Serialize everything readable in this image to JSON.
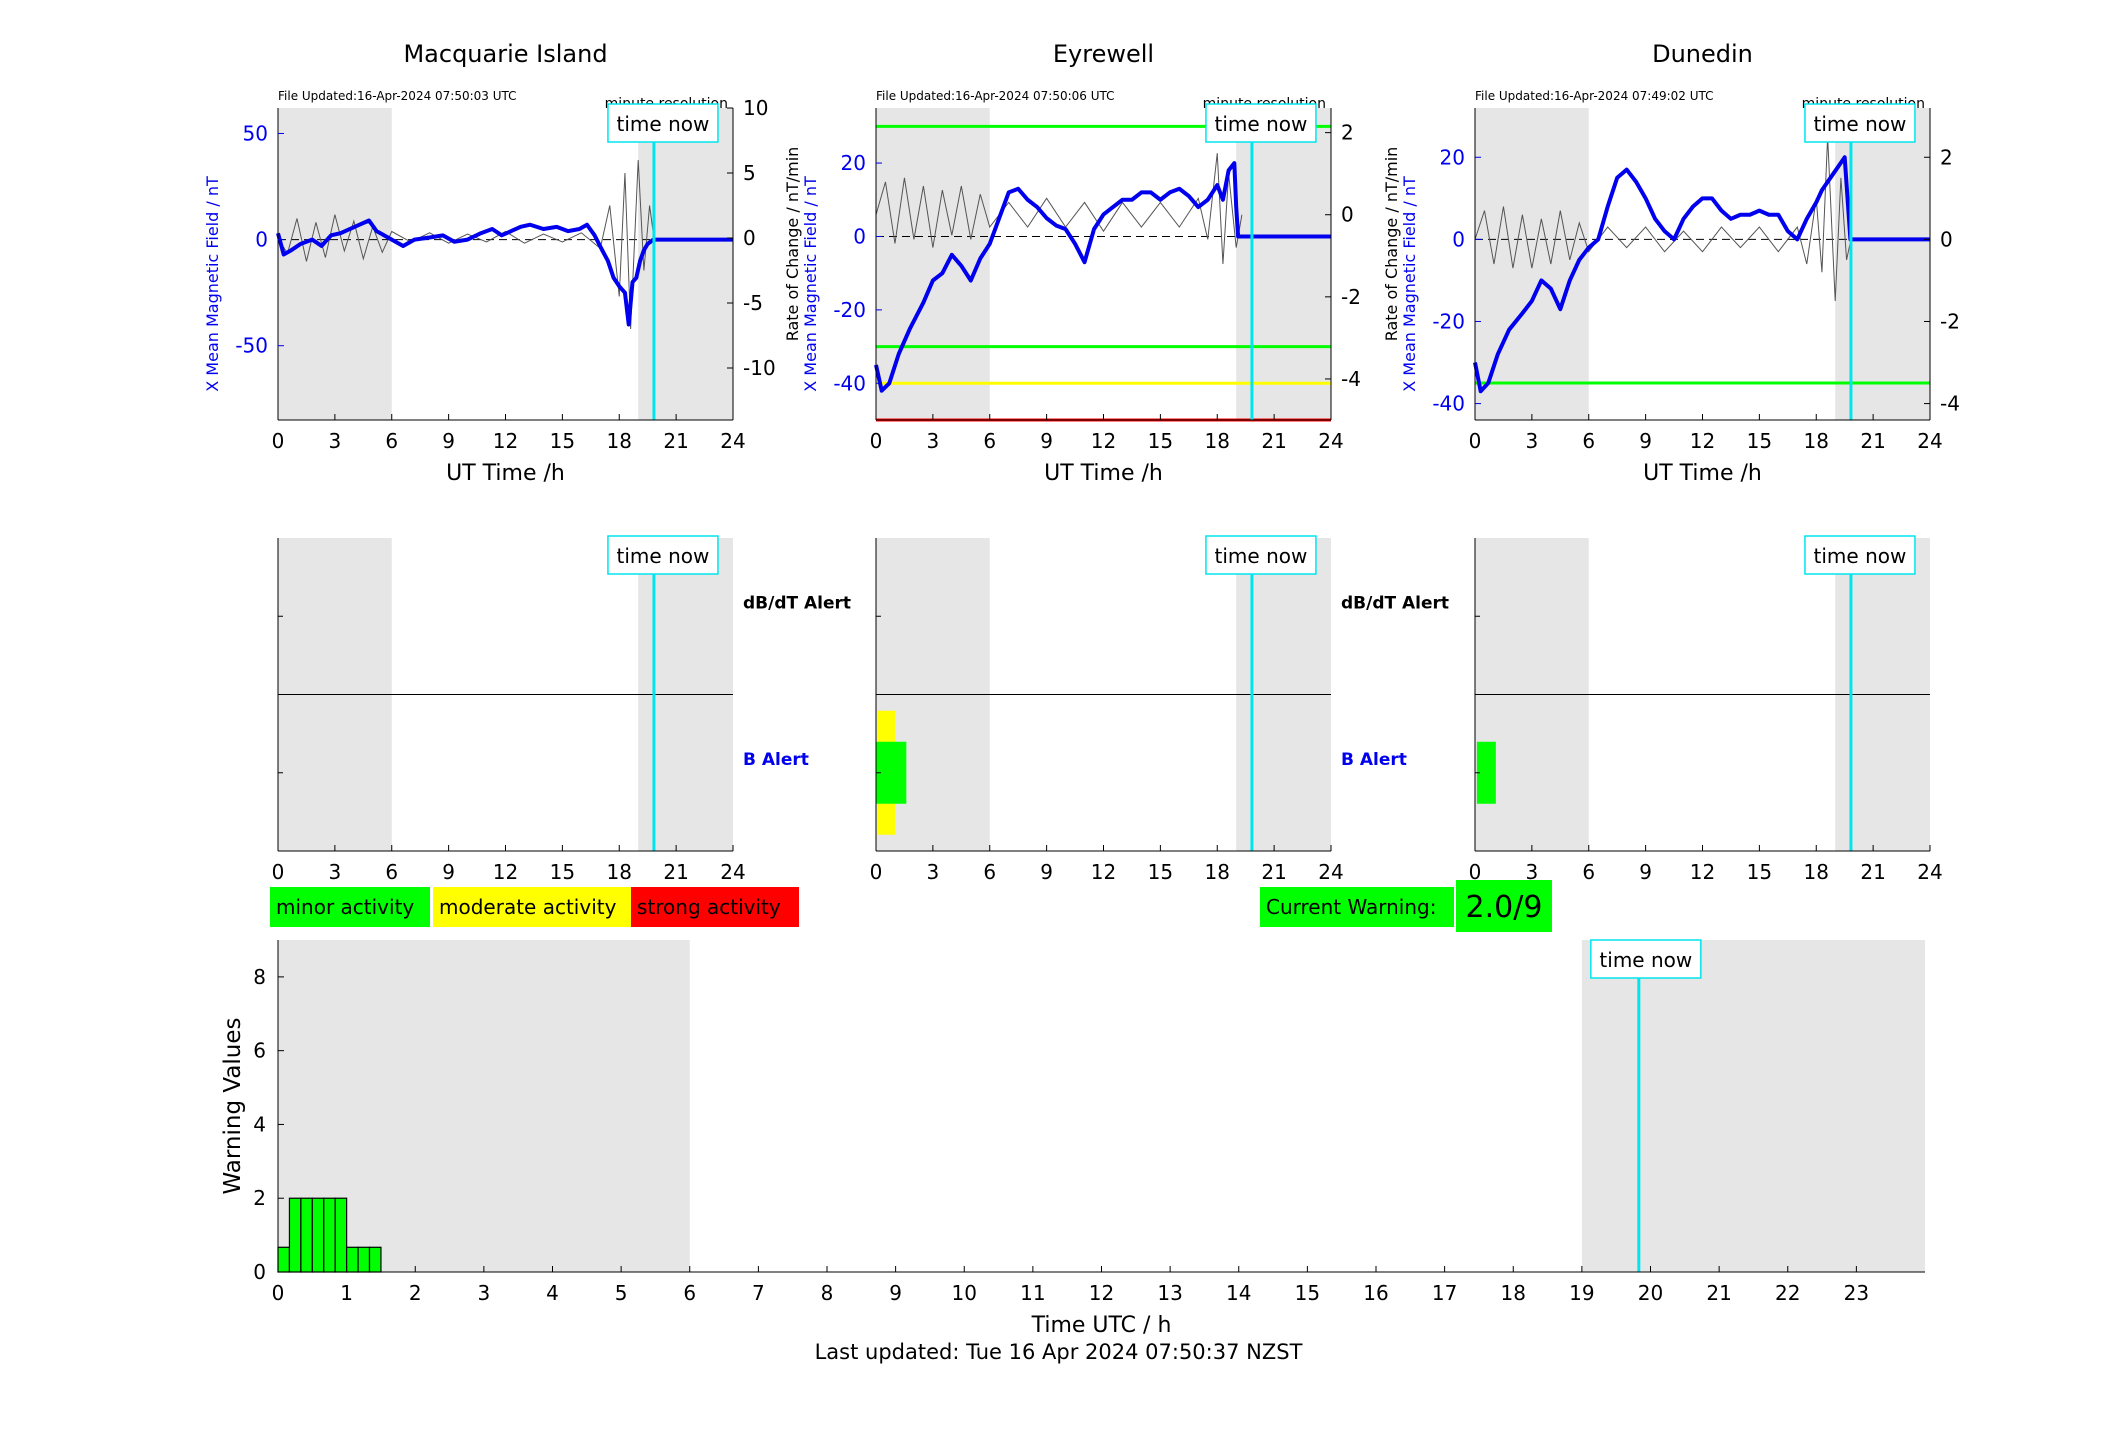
{
  "page": {
    "last_updated": "Last updated: Tue 16 Apr 2024 07:50:37 NZST"
  },
  "colors": {
    "field": "#0000ee",
    "rate": "#555555",
    "grey_band": "#e6e6e6",
    "time_now": "#00e5ee",
    "green": "#00ff00",
    "yellow": "#ffff00",
    "red": "#ff0000"
  },
  "legend": {
    "minor": "minor activity",
    "moderate": "moderate activity",
    "strong": "strong activity"
  },
  "current_warning": {
    "label": "Current Warning:",
    "value": "2.0/9"
  },
  "chart_data": [
    {
      "type": "line",
      "title": "Macquarie Island",
      "file_updated": "File Updated:16-Apr-2024 07:50:03 UTC",
      "resolution": "minute resolution",
      "time_now_label": "time now",
      "xlabel": "UT Time /h",
      "ylabel_left": "X Mean Magnetic Field / nT",
      "ylabel_right": "",
      "xlim": [
        0,
        24
      ],
      "xticks": [
        0,
        3,
        6,
        9,
        12,
        15,
        18,
        21,
        24
      ],
      "ylim_left": [
        -85,
        62
      ],
      "yticks_left": [
        -50,
        0,
        50
      ],
      "ylim_right": [
        -14,
        10
      ],
      "yticks_right": [
        -10,
        -5,
        0,
        5,
        10
      ],
      "grey_bands": [
        [
          0,
          6
        ],
        [
          19,
          24
        ]
      ],
      "time_now": 19.83,
      "threshold_lines": [],
      "series": [
        {
          "name": "X Mean Magnetic Field",
          "axis": "left",
          "x": [
            0,
            0.3,
            0.7,
            1.2,
            1.8,
            2.3,
            2.8,
            3.3,
            3.8,
            4.3,
            4.8,
            5.2,
            5.6,
            6.0,
            6.6,
            7.2,
            8.0,
            8.7,
            9.3,
            10,
            10.7,
            11.3,
            11.8,
            12.3,
            12.8,
            13.3,
            14.0,
            14.7,
            15.3,
            15.9,
            16.3,
            16.7,
            17.1,
            17.4,
            17.7,
            18.0,
            18.3,
            18.5,
            18.7,
            18.9,
            19.1,
            19.3,
            19.5,
            19.8,
            20.5,
            24
          ],
          "values": [
            3,
            -7,
            -5,
            -2,
            0,
            -3,
            2,
            3,
            5,
            7,
            9,
            4,
            2,
            0,
            -3,
            0,
            1,
            2,
            -1,
            0,
            3,
            5,
            2,
            4,
            6,
            7,
            5,
            6,
            4,
            5,
            7,
            2,
            -5,
            -10,
            -18,
            -22,
            -25,
            -40,
            -20,
            -18,
            -10,
            -5,
            -2,
            0,
            0,
            0
          ]
        },
        {
          "name": "Rate of Change",
          "axis": "right",
          "x": [
            0,
            0.5,
            1,
            1.5,
            2,
            2.5,
            3,
            3.5,
            4,
            4.5,
            5,
            5.5,
            6,
            7,
            8,
            9,
            10,
            11,
            12,
            13,
            14,
            15,
            16,
            17,
            17.5,
            18,
            18.3,
            18.6,
            19,
            19.3,
            19.6,
            19.83
          ],
          "values": [
            0,
            -1.2,
            1.5,
            -1.8,
            1.2,
            -1.5,
            1.8,
            -1,
            1.3,
            -1.6,
            0.9,
            -1.1,
            0.5,
            -0.3,
            0.4,
            -0.4,
            0.3,
            -0.3,
            0.5,
            -0.4,
            0.3,
            -0.3,
            0.4,
            -0.8,
            2.5,
            -4.5,
            5,
            -7,
            6,
            -2.5,
            2.5,
            0
          ]
        }
      ]
    },
    {
      "type": "line",
      "title": "Eyrewell",
      "file_updated": "File Updated:16-Apr-2024 07:50:06 UTC",
      "resolution": "minute resolution",
      "time_now_label": "time now",
      "xlabel": "UT Time /h",
      "ylabel_left": "X Mean Magnetic Field / nT",
      "ylabel_right": "Rate of Change / nT/min",
      "xlim": [
        0,
        24
      ],
      "xticks": [
        0,
        3,
        6,
        9,
        12,
        15,
        18,
        21,
        24
      ],
      "ylim_left": [
        -50,
        35
      ],
      "yticks_left": [
        -40,
        -20,
        0,
        20
      ],
      "ylim_right": [
        -5,
        2.6
      ],
      "yticks_right": [
        -4,
        -2,
        0,
        2
      ],
      "grey_bands": [
        [
          0,
          6
        ],
        [
          19,
          24
        ]
      ],
      "time_now": 19.83,
      "threshold_lines": [
        {
          "value": 30,
          "color": "green"
        },
        {
          "value": -30,
          "color": "green"
        },
        {
          "value": -40,
          "color": "yellow"
        },
        {
          "value": -50,
          "color": "red"
        }
      ],
      "series": [
        {
          "name": "X Mean Magnetic Field",
          "axis": "left",
          "x": [
            0,
            0.3,
            0.7,
            1.2,
            1.8,
            2.5,
            3.0,
            3.5,
            4.0,
            4.5,
            5.0,
            5.5,
            6.0,
            6.5,
            7.0,
            7.5,
            8.0,
            8.5,
            9.0,
            9.5,
            10.0,
            10.5,
            11.0,
            11.5,
            12.0,
            12.5,
            13.0,
            13.5,
            14.0,
            14.5,
            15.0,
            15.5,
            16.0,
            16.5,
            17.0,
            17.5,
            18.0,
            18.3,
            18.6,
            18.9,
            19.0,
            19.1,
            24
          ],
          "values": [
            -35,
            -42,
            -40,
            -32,
            -25,
            -18,
            -12,
            -10,
            -5,
            -8,
            -12,
            -6,
            -2,
            5,
            12,
            13,
            10,
            8,
            5,
            3,
            2,
            -2,
            -7,
            2,
            6,
            8,
            10,
            10,
            12,
            12,
            10,
            12,
            13,
            11,
            8,
            10,
            14,
            10,
            18,
            20,
            8,
            0,
            0
          ]
        },
        {
          "name": "Rate of Change",
          "axis": "right",
          "x": [
            0,
            0.5,
            1,
            1.5,
            2,
            2.5,
            3,
            3.5,
            4,
            4.5,
            5,
            5.5,
            6,
            7,
            8,
            9,
            10,
            11,
            12,
            13,
            14,
            15,
            16,
            17,
            17.5,
            18,
            18.3,
            18.6,
            19,
            19.3
          ],
          "values": [
            0,
            0.8,
            -0.7,
            0.9,
            -0.6,
            0.7,
            -0.8,
            0.6,
            -0.5,
            0.7,
            -0.6,
            0.5,
            -0.3,
            0.3,
            -0.3,
            0.4,
            -0.3,
            0.3,
            -0.4,
            0.3,
            -0.3,
            0.3,
            -0.3,
            0.4,
            -0.6,
            1.5,
            -1.2,
            1.0,
            -0.8,
            0
          ]
        }
      ]
    },
    {
      "type": "line",
      "title": "Dunedin",
      "file_updated": "File Updated:16-Apr-2024 07:49:02 UTC",
      "resolution": "minute resolution",
      "time_now_label": "time now",
      "xlabel": "UT Time /h",
      "ylabel_left": "X Mean Magnetic Field / nT",
      "ylabel_right": "Rate of Change / nT/min",
      "xlim": [
        0,
        24
      ],
      "xticks": [
        0,
        3,
        6,
        9,
        12,
        15,
        18,
        21,
        24
      ],
      "ylim_left": [
        -44,
        32
      ],
      "yticks_left": [
        -40,
        -20,
        0,
        20
      ],
      "ylim_right": [
        -4.4,
        3.2
      ],
      "yticks_right": [
        -4,
        -2,
        0,
        2
      ],
      "grey_bands": [
        [
          0,
          6
        ],
        [
          19,
          24
        ]
      ],
      "time_now": 19.83,
      "threshold_lines": [
        {
          "value": -35,
          "color": "green"
        }
      ],
      "series": [
        {
          "name": "X Mean Magnetic Field",
          "axis": "left",
          "x": [
            0,
            0.3,
            0.7,
            1.2,
            1.8,
            2.5,
            3.0,
            3.5,
            4.0,
            4.5,
            5.0,
            5.5,
            6.0,
            6.5,
            7.0,
            7.5,
            8.0,
            8.5,
            9.0,
            9.5,
            10.0,
            10.5,
            11.0,
            11.5,
            12.0,
            12.5,
            13.0,
            13.5,
            14.0,
            14.5,
            15.0,
            15.5,
            16.0,
            16.5,
            17.0,
            17.5,
            18.0,
            18.3,
            18.6,
            18.9,
            19.2,
            19.5,
            19.8,
            24
          ],
          "values": [
            -30,
            -37,
            -35,
            -28,
            -22,
            -18,
            -15,
            -10,
            -12,
            -17,
            -10,
            -5,
            -2,
            0,
            8,
            15,
            17,
            14,
            10,
            5,
            2,
            0,
            5,
            8,
            10,
            10,
            7,
            5,
            6,
            6,
            7,
            6,
            6,
            2,
            0,
            5,
            9,
            12,
            14,
            16,
            18,
            20,
            0,
            0
          ]
        },
        {
          "name": "Rate of Change",
          "axis": "right",
          "x": [
            0,
            0.5,
            1,
            1.5,
            2,
            2.5,
            3,
            3.5,
            4,
            4.5,
            5,
            5.5,
            6,
            7,
            8,
            9,
            10,
            11,
            12,
            13,
            14,
            15,
            16,
            17,
            17.5,
            18,
            18.3,
            18.6,
            19,
            19.3,
            19.6,
            19.83
          ],
          "values": [
            0,
            0.7,
            -0.6,
            0.8,
            -0.7,
            0.6,
            -0.7,
            0.5,
            -0.6,
            0.7,
            -0.5,
            0.4,
            -0.3,
            0.3,
            -0.2,
            0.3,
            -0.3,
            0.2,
            -0.3,
            0.3,
            -0.2,
            0.3,
            -0.3,
            0.3,
            -0.6,
            1.0,
            -0.8,
            2.5,
            -1.5,
            1.5,
            -0.5,
            0
          ]
        }
      ]
    },
    {
      "type": "bar",
      "title": "",
      "station": "Macquarie Island",
      "time_now_label": "time now",
      "top_label": "dB/dT Alert",
      "bottom_label": "B Alert",
      "xlim": [
        0,
        24
      ],
      "xticks": [
        0,
        3,
        6,
        9,
        12,
        15,
        18,
        21,
        24
      ],
      "grey_bands": [
        [
          0,
          6
        ],
        [
          19,
          24
        ]
      ],
      "time_now": 19.83,
      "b_alerts": []
    },
    {
      "type": "bar",
      "title": "",
      "station": "Eyrewell",
      "time_now_label": "time now",
      "top_label": "dB/dT Alert",
      "bottom_label": "B Alert",
      "xlim": [
        0,
        24
      ],
      "xticks": [
        0,
        3,
        6,
        9,
        12,
        15,
        18,
        21,
        24
      ],
      "grey_bands": [
        [
          0,
          6
        ],
        [
          19,
          24
        ]
      ],
      "time_now": 19.83,
      "b_alerts": [
        {
          "x0": 0.1,
          "x1": 1.0,
          "level": "yellow",
          "size": 1.0
        },
        {
          "x0": 0.0,
          "x1": 1.6,
          "level": "green",
          "size": 0.5
        }
      ]
    },
    {
      "type": "bar",
      "title": "",
      "station": "Dunedin",
      "time_now_label": "time now",
      "top_label": "",
      "bottom_label": "",
      "xlim": [
        0,
        24
      ],
      "xticks": [
        0,
        3,
        6,
        9,
        12,
        15,
        18,
        21,
        24
      ],
      "grey_bands": [
        [
          0,
          6
        ],
        [
          19,
          24
        ]
      ],
      "time_now": 19.83,
      "b_alerts": [
        {
          "x0": 0.1,
          "x1": 1.1,
          "level": "green",
          "size": 0.5
        }
      ]
    },
    {
      "type": "bar",
      "title": "",
      "xlabel": "Time UTC / h",
      "ylabel": "Warning Values",
      "time_now_label": "time now",
      "xlim": [
        0,
        24
      ],
      "xticks": [
        0,
        1,
        2,
        3,
        4,
        5,
        6,
        7,
        8,
        9,
        10,
        11,
        12,
        13,
        14,
        15,
        16,
        17,
        18,
        19,
        20,
        21,
        22,
        23
      ],
      "ylim": [
        0,
        9
      ],
      "yticks": [
        0,
        2,
        4,
        6,
        8
      ],
      "grey_bands": [
        [
          0,
          6
        ],
        [
          19,
          24
        ]
      ],
      "time_now": 19.83,
      "bar_width": 0.1667,
      "bars_x": [
        0.0,
        0.1667,
        0.3333,
        0.5,
        0.6667,
        0.8333,
        1.0,
        1.1667,
        1.3333
      ],
      "values": [
        0.67,
        2,
        2,
        2,
        2,
        2,
        0.67,
        0.67,
        0.67
      ]
    }
  ]
}
